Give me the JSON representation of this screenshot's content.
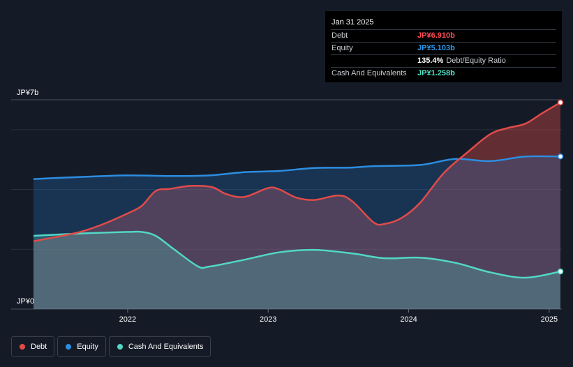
{
  "chart_data": {
    "type": "area",
    "title": "",
    "xlabel": "",
    "ylabel": "",
    "y_unit": "JP¥b",
    "ylim": [
      0,
      7
    ],
    "y_tick_labels": [
      "JP¥0",
      "JP¥7b"
    ],
    "x_ticks": [
      2022,
      2023,
      2024,
      2025
    ],
    "x_tick_labels": [
      "2022",
      "2023",
      "2024",
      "2025"
    ],
    "xlim": [
      2021.33,
      2025.08
    ],
    "grid": true,
    "legend_placement": "bottom-left",
    "series": [
      {
        "name": "Debt",
        "color": "#e04b4a",
        "x": [
          2021.33,
          2021.5,
          2021.67,
          2021.83,
          2022.0,
          2022.1,
          2022.2,
          2022.3,
          2022.45,
          2022.6,
          2022.7,
          2022.83,
          2023.0,
          2023.08,
          2023.2,
          2023.33,
          2023.5,
          2023.6,
          2023.75,
          2023.83,
          2023.95,
          2024.08,
          2024.25,
          2024.42,
          2024.58,
          2024.7,
          2024.83,
          2024.95,
          2025.08
        ],
        "values": [
          2.27,
          2.42,
          2.59,
          2.85,
          3.2,
          3.45,
          3.95,
          4.02,
          4.12,
          4.08,
          3.85,
          3.75,
          4.05,
          4.0,
          3.73,
          3.65,
          3.8,
          3.6,
          2.9,
          2.85,
          3.05,
          3.55,
          4.55,
          5.25,
          5.85,
          6.05,
          6.2,
          6.55,
          6.91
        ]
      },
      {
        "name": "Equity",
        "color": "#2d8de0",
        "x": [
          2021.33,
          2021.67,
          2022.0,
          2022.33,
          2022.58,
          2022.83,
          2023.08,
          2023.33,
          2023.58,
          2023.75,
          2024.08,
          2024.33,
          2024.58,
          2024.83,
          2025.08
        ],
        "values": [
          4.35,
          4.42,
          4.47,
          4.45,
          4.47,
          4.58,
          4.62,
          4.72,
          4.73,
          4.78,
          4.82,
          5.02,
          4.95,
          5.1,
          5.103
        ]
      },
      {
        "name": "Cash And Equivalents",
        "color": "#52d7c6",
        "x": [
          2021.33,
          2021.67,
          2022.0,
          2022.1,
          2022.2,
          2022.33,
          2022.5,
          2022.58,
          2022.83,
          2023.08,
          2023.33,
          2023.6,
          2023.83,
          2024.08,
          2024.33,
          2024.58,
          2024.83,
          2025.08
        ],
        "values": [
          2.45,
          2.53,
          2.58,
          2.58,
          2.45,
          2.0,
          1.43,
          1.42,
          1.65,
          1.9,
          1.98,
          1.86,
          1.7,
          1.72,
          1.55,
          1.23,
          1.05,
          1.258
        ]
      }
    ]
  },
  "tooltip": {
    "date": "Jan 31 2025",
    "rows": [
      {
        "label": "Debt",
        "value": "JP¥6.910b",
        "color": "#ff4d55"
      },
      {
        "label": "Equity",
        "value": "JP¥5.103b",
        "color": "#2d9cf0"
      },
      {
        "label": "",
        "value": "135.4%",
        "extra": "Debt/Equity Ratio",
        "color": "#ffffff"
      },
      {
        "label": "Cash And Equivalents",
        "value": "JP¥1.258b",
        "color": "#52e0c8"
      }
    ]
  },
  "legend": [
    {
      "label": "Debt",
      "color": "#e04b4a"
    },
    {
      "label": "Equity",
      "color": "#2d8de0"
    },
    {
      "label": "Cash And Equivalents",
      "color": "#52d7c6"
    }
  ]
}
